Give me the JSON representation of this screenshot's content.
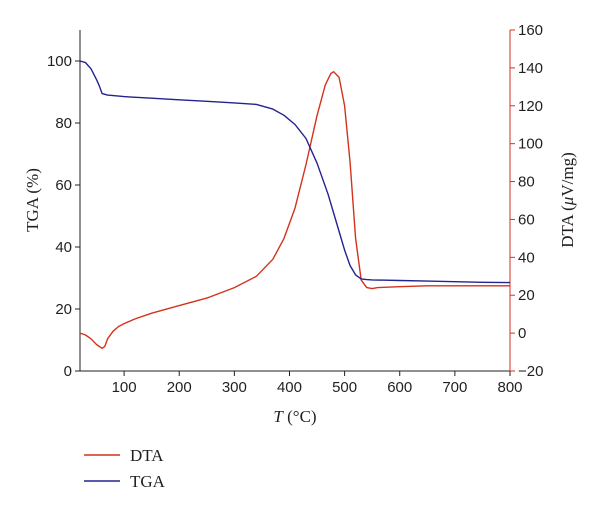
{
  "chart_data": {
    "type": "line",
    "title": "",
    "xlabel_italic": "T",
    "xlabel_unit": " (°C)",
    "ylabel_left": "TGA (%)",
    "ylabel_right_prefix": "DTA (",
    "ylabel_right_mu": "μ",
    "ylabel_right_suffix": "V/mg)",
    "xlim": [
      20,
      800
    ],
    "ylim_left": [
      0,
      110
    ],
    "ylim_right": [
      -20,
      160
    ],
    "x_ticks": [
      100,
      200,
      300,
      400,
      500,
      600,
      700,
      800
    ],
    "y_left_ticks": [
      0,
      20,
      40,
      60,
      80,
      100
    ],
    "y_right_ticks": [
      -20,
      0,
      20,
      40,
      60,
      80,
      100,
      120,
      140,
      160
    ],
    "grid": false,
    "legend_position": "bottom-left",
    "colors": {
      "DTA": "#d4321c",
      "TGA": "#23238e"
    },
    "series": [
      {
        "name": "DTA",
        "axis": "right",
        "x": [
          20,
          30,
          40,
          50,
          60,
          65,
          70,
          80,
          90,
          100,
          120,
          150,
          200,
          250,
          300,
          340,
          370,
          390,
          410,
          430,
          450,
          465,
          475,
          480,
          490,
          500,
          510,
          520,
          530,
          540,
          550,
          560,
          600,
          650,
          700,
          750,
          800
        ],
        "y": [
          0,
          -1,
          -3,
          -6,
          -8,
          -7,
          -3,
          1,
          3.5,
          5,
          7.5,
          10.5,
          14.5,
          18.5,
          24,
          30,
          39,
          50,
          66,
          89,
          115,
          131,
          137,
          138,
          135,
          120,
          90,
          50,
          28,
          24,
          23.5,
          24,
          24.5,
          25,
          25,
          25,
          25
        ]
      },
      {
        "name": "TGA",
        "axis": "left",
        "x": [
          20,
          30,
          40,
          50,
          55,
          60,
          70,
          100,
          150,
          200,
          250,
          300,
          340,
          370,
          390,
          410,
          430,
          450,
          470,
          490,
          500,
          510,
          520,
          530,
          540,
          550,
          600,
          650,
          700,
          750,
          800
        ],
        "y": [
          100,
          99.5,
          97.5,
          94,
          92,
          89.5,
          89,
          88.5,
          88,
          87.5,
          87,
          86.5,
          86,
          84.5,
          82.5,
          79.5,
          75,
          67,
          57,
          45,
          39,
          34,
          31,
          29.7,
          29.5,
          29.4,
          29.2,
          29,
          28.8,
          28.6,
          28.5
        ]
      }
    ]
  }
}
